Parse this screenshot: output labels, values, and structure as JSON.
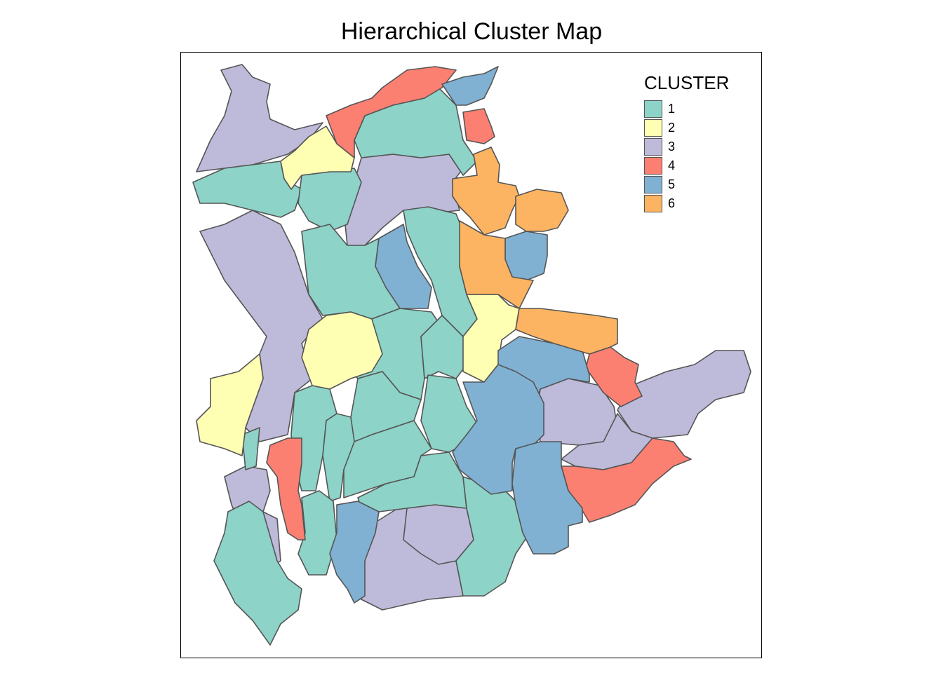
{
  "title": "Hierarchical Cluster Map",
  "legend": {
    "title": "CLUSTER",
    "items": [
      {
        "label": "1",
        "color": "#8DD3C7"
      },
      {
        "label": "2",
        "color": "#FFFFB3"
      },
      {
        "label": "3",
        "color": "#BEBADA"
      },
      {
        "label": "4",
        "color": "#FB8072"
      },
      {
        "label": "5",
        "color": "#80B1D3"
      },
      {
        "label": "6",
        "color": "#FDB462"
      }
    ]
  },
  "colors": {
    "border": "#555555",
    "frame": "#000000",
    "background": "#ffffff"
  }
}
